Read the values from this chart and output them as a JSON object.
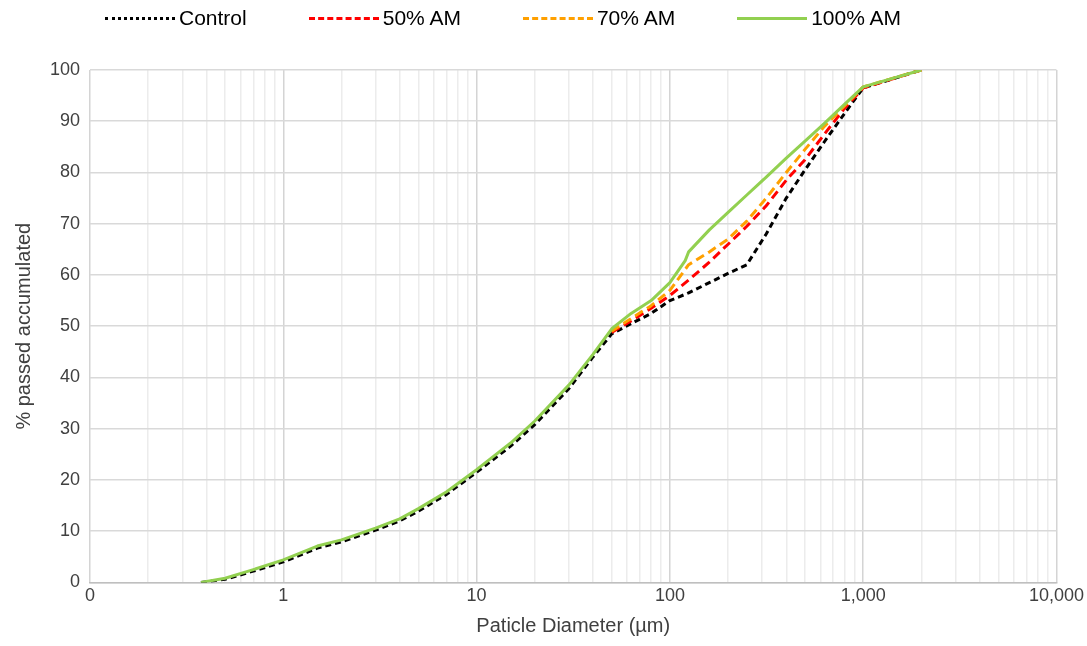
{
  "chart_data": {
    "type": "line",
    "xlabel": "Paticle Diameter (µm)",
    "ylabel": "% passed accumulated",
    "log": "x",
    "grid": true,
    "legend": "top",
    "marker": "none",
    "xlim": [
      0.1,
      10000
    ],
    "xticks": [
      {
        "value": 0.1,
        "label": "0"
      },
      {
        "value": 0.2,
        "label": null
      },
      {
        "value": 0.3,
        "label": null
      },
      {
        "value": 0.4,
        "label": null
      },
      {
        "value": 0.5,
        "label": null
      },
      {
        "value": 0.6,
        "label": null
      },
      {
        "value": 0.7,
        "label": null
      },
      {
        "value": 0.8,
        "label": null
      },
      {
        "value": 0.9,
        "label": null
      },
      1,
      {
        "value": 2,
        "label": null
      },
      {
        "value": 3,
        "label": null
      },
      {
        "value": 4,
        "label": null
      },
      {
        "value": 5,
        "label": null
      },
      {
        "value": 6,
        "label": null
      },
      {
        "value": 7,
        "label": null
      },
      {
        "value": 8,
        "label": null
      },
      {
        "value": 9,
        "label": null
      },
      10,
      {
        "value": 20,
        "label": null
      },
      {
        "value": 30,
        "label": null
      },
      {
        "value": 40,
        "label": null
      },
      {
        "value": 50,
        "label": null
      },
      {
        "value": 60,
        "label": null
      },
      {
        "value": 70,
        "label": null
      },
      {
        "value": 80,
        "label": null
      },
      {
        "value": 90,
        "label": null
      },
      100,
      {
        "value": 200,
        "label": null
      },
      {
        "value": 300,
        "label": null
      },
      {
        "value": 400,
        "label": null
      },
      {
        "value": 500,
        "label": null
      },
      {
        "value": 600,
        "label": null
      },
      {
        "value": 700,
        "label": null
      },
      {
        "value": 800,
        "label": null
      },
      {
        "value": 900,
        "label": null
      },
      {
        "value": 1000,
        "label": "1,000"
      },
      {
        "value": 2000,
        "label": null
      },
      {
        "value": 3000,
        "label": null
      },
      {
        "value": 4000,
        "label": null
      },
      {
        "value": 5000,
        "label": null
      },
      {
        "value": 6000,
        "label": null
      },
      {
        "value": 7000,
        "label": null
      },
      {
        "value": 8000,
        "label": null
      },
      {
        "value": 9000,
        "label": null
      },
      {
        "value": 10000,
        "label": "10,000"
      }
    ],
    "ylim": [
      0,
      100
    ],
    "yticks": [
      0,
      10,
      20,
      30,
      40,
      50,
      60,
      70,
      80,
      90,
      100
    ],
    "series": [
      {
        "name": "Control",
        "color": "#000000",
        "line_style": "dotted",
        "x": [
          0.375,
          0.5,
          0.7,
          1,
          1.5,
          2,
          3,
          4,
          5,
          7,
          10,
          15,
          20,
          30,
          40,
          50,
          63,
          80,
          100,
          125,
          160,
          200,
          250,
          315,
          400,
          500,
          630,
          800,
          1000,
          2000
        ],
        "values": [
          0,
          0.6,
          2.2,
          4,
          6.7,
          7.9,
          10.2,
          12,
          13.9,
          17.2,
          21.5,
          26.6,
          30.8,
          37.8,
          44,
          48.5,
          50.5,
          52.5,
          55,
          56.5,
          58.5,
          60.3,
          62,
          68,
          75,
          80.5,
          86,
          91.5,
          96.5,
          100
        ]
      },
      {
        "name": "50% AM",
        "color": "#ff0000",
        "line_style": "dashed",
        "x": [
          50,
          63,
          80,
          100,
          125,
          160,
          200,
          250,
          315,
          400,
          500,
          630,
          800,
          1000,
          2000
        ],
        "values": [
          48.8,
          51,
          53.5,
          56,
          59,
          62.5,
          66,
          69.5,
          73.5,
          78.5,
          82.5,
          87.5,
          92.5,
          96.5,
          100
        ]
      },
      {
        "name": "70% AM",
        "color": "#ffa000",
        "line_style": "dashed",
        "x": [
          50,
          63,
          80,
          100,
          125,
          160,
          200,
          250,
          315,
          400,
          500,
          630,
          800,
          1000,
          2000
        ],
        "values": [
          49,
          51.5,
          54,
          57,
          62,
          64.5,
          67,
          70.5,
          75,
          80,
          84.5,
          89,
          93,
          96.7,
          100
        ]
      },
      {
        "name": "100% AM",
        "color": "#92d050",
        "line_style": "solid",
        "x": [
          0.375,
          0.5,
          0.7,
          1,
          1.5,
          2,
          3,
          4,
          5,
          7,
          10,
          15,
          20,
          30,
          40,
          50,
          63,
          80,
          100,
          120,
          125,
          160,
          200,
          250,
          315,
          400,
          500,
          630,
          800,
          1000,
          2000
        ],
        "values": [
          0,
          0.8,
          2.5,
          4.4,
          7.1,
          8.3,
          10.6,
          12.4,
          14.4,
          17.7,
          22,
          27.2,
          31.5,
          38.5,
          44.5,
          49.5,
          52.5,
          55,
          58.5,
          62.8,
          64.5,
          68.8,
          72.2,
          75.6,
          79.1,
          82.8,
          86.1,
          89.6,
          93.3,
          96.7,
          100
        ]
      }
    ]
  }
}
